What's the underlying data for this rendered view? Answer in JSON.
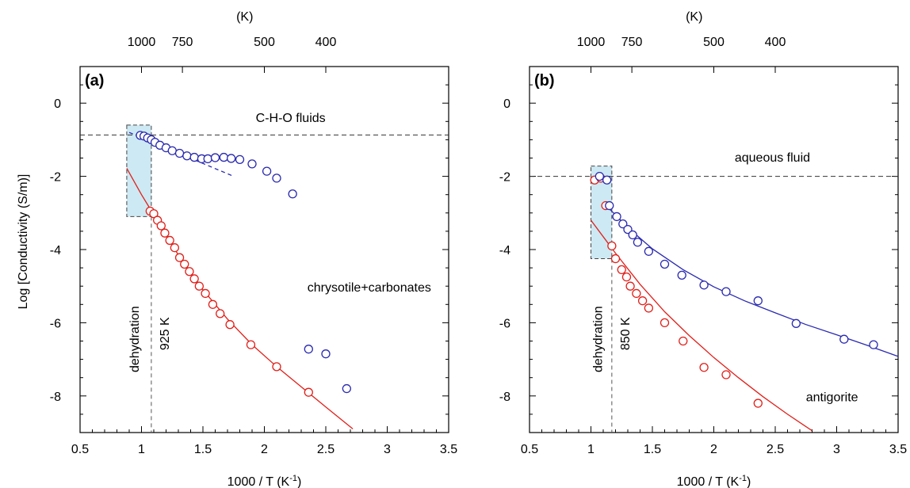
{
  "figure": {
    "ylabel": "Log [Conductivity (S/m)]"
  },
  "chart_data": [
    {
      "type": "scatter",
      "panel_label": "(a)",
      "xlabel": "1000 / T (K",
      "xlabel_sup": "-1",
      "xlabel_close": ")",
      "top_axis_label": "(K)",
      "top_ticks": [
        {
          "label": "1000",
          "x": 1.0
        },
        {
          "label": "750",
          "x": 1.333
        },
        {
          "label": "500",
          "x": 2.0
        },
        {
          "label": "400",
          "x": 2.5
        }
      ],
      "xlim": [
        0.5,
        3.5
      ],
      "ylim": [
        -9,
        1
      ],
      "x_ticks": [
        "0.5",
        "1",
        "1.5",
        "2",
        "2.5",
        "3",
        "3.5"
      ],
      "y_ticks": [
        "0",
        "-2",
        "-4",
        "-6",
        "-8"
      ],
      "reference_line": {
        "label": "C-H-O fluids",
        "y": -0.87
      },
      "dehydration_label": "dehydration",
      "dehydration_box": {
        "x": [
          0.88,
          1.08
        ],
        "y": [
          -3.1,
          -0.6
        ]
      },
      "transition": {
        "label": "925 K",
        "x": 1.08
      },
      "series": [
        {
          "name": "chrysotile+carbonates",
          "color": "#e0201a",
          "points": [
            [
              1.07,
              -2.95
            ],
            [
              1.1,
              -3.02
            ],
            [
              1.13,
              -3.2
            ],
            [
              1.16,
              -3.35
            ],
            [
              1.19,
              -3.55
            ],
            [
              1.23,
              -3.75
            ],
            [
              1.27,
              -3.95
            ],
            [
              1.31,
              -4.22
            ],
            [
              1.35,
              -4.4
            ],
            [
              1.39,
              -4.6
            ],
            [
              1.43,
              -4.8
            ],
            [
              1.47,
              -5.0
            ],
            [
              1.52,
              -5.2
            ],
            [
              1.58,
              -5.5
            ],
            [
              1.64,
              -5.75
            ],
            [
              1.72,
              -6.05
            ],
            [
              1.89,
              -6.6
            ],
            [
              2.1,
              -7.2
            ],
            [
              2.36,
              -7.9
            ]
          ],
          "fit": [
            [
              0.88,
              -1.78
            ],
            [
              1.0,
              -2.5
            ],
            [
              1.1,
              -3.05
            ],
            [
              1.3,
              -4.15
            ],
            [
              1.5,
              -5.1
            ],
            [
              1.7,
              -5.9
            ],
            [
              1.9,
              -6.6
            ],
            [
              2.1,
              -7.2
            ],
            [
              2.3,
              -7.75
            ],
            [
              2.5,
              -8.3
            ],
            [
              2.72,
              -8.9
            ]
          ]
        },
        {
          "name": "",
          "color": "#2a2ab0",
          "points": [
            [
              0.99,
              -0.88
            ],
            [
              1.02,
              -0.9
            ],
            [
              1.05,
              -0.95
            ],
            [
              1.08,
              -1.0
            ],
            [
              1.11,
              -1.07
            ],
            [
              1.15,
              -1.15
            ],
            [
              1.2,
              -1.22
            ],
            [
              1.25,
              -1.3
            ],
            [
              1.31,
              -1.37
            ],
            [
              1.37,
              -1.44
            ],
            [
              1.43,
              -1.48
            ],
            [
              1.49,
              -1.52
            ],
            [
              1.54,
              -1.52
            ],
            [
              1.6,
              -1.49
            ],
            [
              1.67,
              -1.48
            ],
            [
              1.73,
              -1.51
            ],
            [
              1.8,
              -1.54
            ],
            [
              1.9,
              -1.66
            ],
            [
              2.02,
              -1.86
            ],
            [
              2.1,
              -2.05
            ],
            [
              2.23,
              -2.48
            ]
          ],
          "fit": [
            [
              0.9,
              -0.8
            ],
            [
              1.75,
              -2.0
            ]
          ]
        },
        {
          "name": "",
          "color": "#2a2ab0",
          "points": [
            [
              2.36,
              -6.72
            ],
            [
              2.5,
              -6.85
            ],
            [
              2.67,
              -7.8
            ]
          ]
        }
      ]
    },
    {
      "type": "scatter",
      "panel_label": "(b)",
      "xlabel": "1000 / T (K",
      "xlabel_sup": "-1",
      "xlabel_close": ")",
      "top_axis_label": "(K)",
      "top_ticks": [
        {
          "label": "1000",
          "x": 1.0
        },
        {
          "label": "750",
          "x": 1.333
        },
        {
          "label": "500",
          "x": 2.0
        },
        {
          "label": "400",
          "x": 2.5
        }
      ],
      "xlim": [
        0.5,
        3.5
      ],
      "ylim": [
        -9,
        1
      ],
      "x_ticks": [
        "0.5",
        "1",
        "1.5",
        "2",
        "2.5",
        "3",
        "3.5"
      ],
      "y_ticks": [
        "0",
        "-2",
        "-4",
        "-6",
        "-8"
      ],
      "reference_line": {
        "label": "aqueous fluid",
        "y": -2.0
      },
      "dehydration_label": "dehydration",
      "dehydration_box": {
        "x": [
          1.0,
          1.17
        ],
        "y": [
          -4.25,
          -1.72
        ]
      },
      "transition": {
        "label": "850 K",
        "x": 1.17
      },
      "series": [
        {
          "name": "antigorite",
          "color": "#e0201a",
          "points": [
            [
              1.03,
              -2.1
            ],
            [
              1.08,
              -2.05
            ],
            [
              1.12,
              -2.8
            ],
            [
              1.17,
              -3.9
            ],
            [
              1.2,
              -4.25
            ],
            [
              1.25,
              -4.55
            ],
            [
              1.29,
              -4.75
            ],
            [
              1.32,
              -5.0
            ],
            [
              1.37,
              -5.2
            ],
            [
              1.42,
              -5.4
            ],
            [
              1.47,
              -5.6
            ],
            [
              1.6,
              -6.0
            ],
            [
              1.75,
              -6.5
            ],
            [
              1.92,
              -7.22
            ],
            [
              2.1,
              -7.42
            ],
            [
              2.36,
              -8.2
            ]
          ],
          "fit": [
            [
              1.0,
              -3.2
            ],
            [
              1.2,
              -4.1
            ],
            [
              1.4,
              -4.95
            ],
            [
              1.6,
              -5.7
            ],
            [
              1.8,
              -6.35
            ],
            [
              2.0,
              -6.95
            ],
            [
              2.2,
              -7.5
            ],
            [
              2.4,
              -8.02
            ],
            [
              2.6,
              -8.5
            ],
            [
              2.8,
              -8.95
            ]
          ]
        },
        {
          "name": "",
          "color": "#2a2ab0",
          "points": [
            [
              1.07,
              -2.0
            ],
            [
              1.13,
              -2.1
            ],
            [
              1.15,
              -2.8
            ],
            [
              1.21,
              -3.1
            ],
            [
              1.26,
              -3.3
            ],
            [
              1.3,
              -3.45
            ],
            [
              1.34,
              -3.6
            ],
            [
              1.38,
              -3.8
            ],
            [
              1.47,
              -4.05
            ],
            [
              1.6,
              -4.4
            ],
            [
              1.74,
              -4.7
            ],
            [
              1.92,
              -4.97
            ],
            [
              2.1,
              -5.15
            ],
            [
              2.36,
              -5.4
            ],
            [
              2.67,
              -6.02
            ],
            [
              3.06,
              -6.45
            ],
            [
              3.3,
              -6.6
            ]
          ],
          "fit": [
            [
              1.14,
              -2.85
            ],
            [
              1.3,
              -3.4
            ],
            [
              1.5,
              -3.98
            ],
            [
              1.75,
              -4.55
            ],
            [
              2.0,
              -5.02
            ],
            [
              2.25,
              -5.4
            ],
            [
              2.5,
              -5.73
            ],
            [
              2.75,
              -6.05
            ],
            [
              3.0,
              -6.33
            ],
            [
              3.25,
              -6.62
            ],
            [
              3.5,
              -6.92
            ]
          ]
        }
      ]
    }
  ]
}
